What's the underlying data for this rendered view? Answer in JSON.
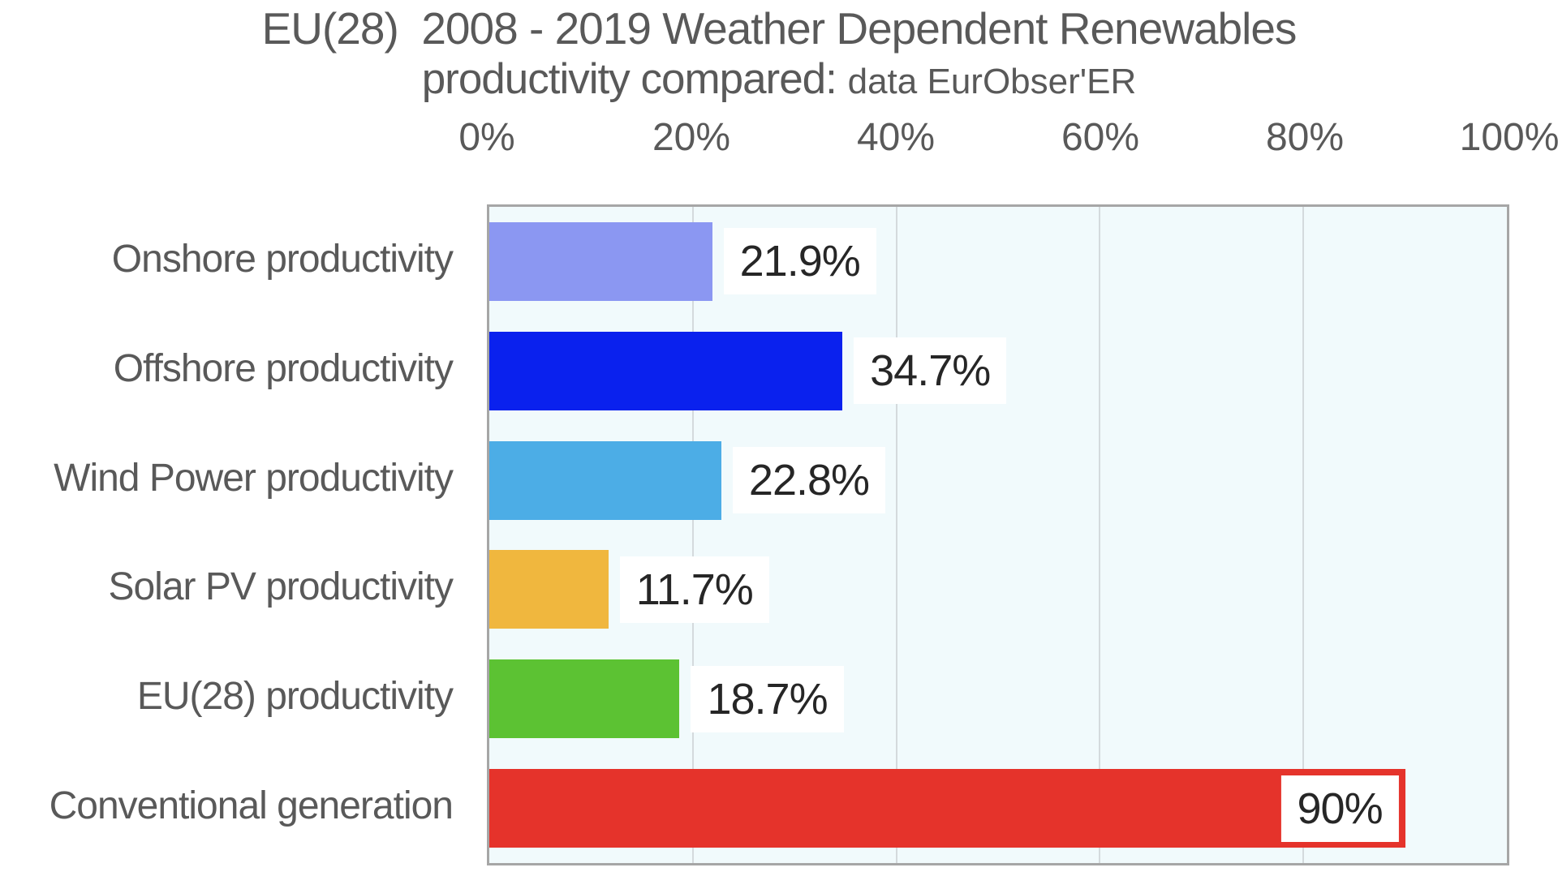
{
  "title": {
    "line1": "EU(28)  2008 - 2019 Weather Dependent Renewables",
    "line2_main": "productivity compared:",
    "line2_sub": "data EurObser'ER"
  },
  "colors": {
    "title_text": "#595959",
    "axis_tick_text": "#595959",
    "category_text": "#595959",
    "data_label_text": "#262626",
    "data_label_background": "#ffffff",
    "plot_background": "#f1fafc",
    "plot_border": "#a6a6a6",
    "gridline": "#d4dadd",
    "page_background": "#ffffff"
  },
  "chart_data": {
    "type": "bar",
    "orientation": "horizontal",
    "title": "EU(28) 2008 - 2019 Weather Dependent Renewables productivity compared: data EurObser'ER",
    "xlabel": "",
    "ylabel": "",
    "categories": [
      "Onshore productivity",
      "Offshore productivity",
      "Wind Power productivity",
      "Solar PV productivity",
      "EU(28) productivity",
      "Conventional generation"
    ],
    "values": [
      21.9,
      34.7,
      22.8,
      11.7,
      18.7,
      90
    ],
    "data_labels": [
      "21.9%",
      "34.7%",
      "22.8%",
      "11.7%",
      "18.7%",
      "90%"
    ],
    "label_inside_bar": [
      false,
      false,
      false,
      false,
      false,
      true
    ],
    "bar_colors": [
      "#8b97f2",
      "#0a21ee",
      "#4cade6",
      "#f0b73e",
      "#5cc233",
      "#e5332b"
    ],
    "xlim": [
      0,
      100
    ],
    "x_ticks": [
      0,
      20,
      40,
      60,
      80,
      100
    ],
    "x_tick_labels": [
      "0%",
      "20%",
      "40%",
      "60%",
      "80%",
      "100%"
    ],
    "axis_position": "top",
    "grid": "vertical",
    "legend": false
  }
}
